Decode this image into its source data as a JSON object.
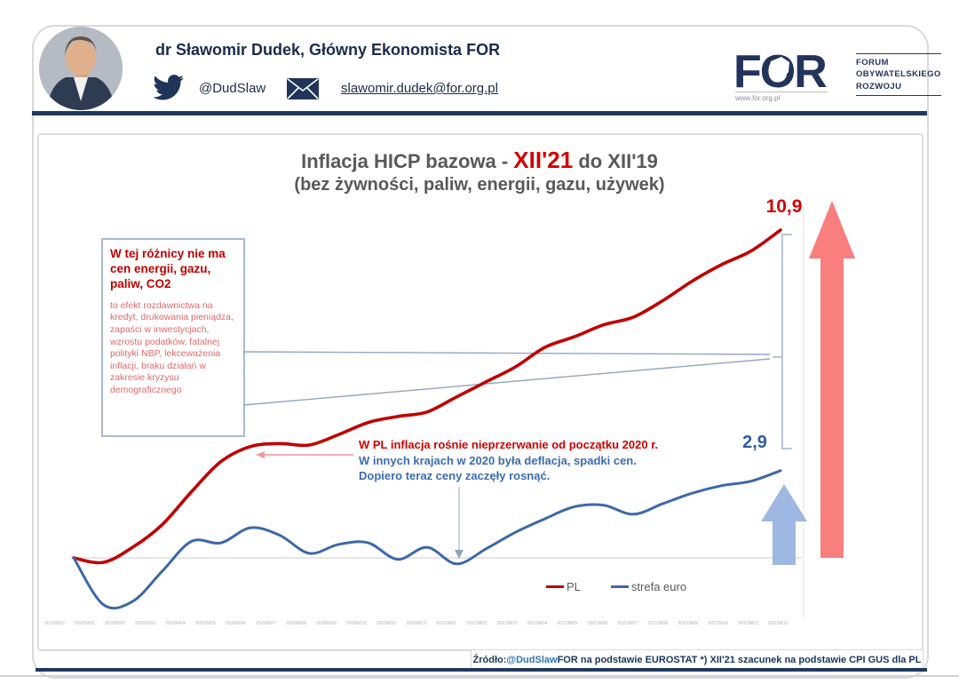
{
  "header": {
    "name": "dr Sławomir Dudek, Główny Ekonomista FOR",
    "twitter_handle": "@DudSlaw",
    "email": "slawomir.dudek@for.org.pl",
    "logo": {
      "acronym": "FOR",
      "subtitle_lines": [
        "FORUM",
        "OBYWATELSKIEGO",
        "ROZWOJU"
      ],
      "url": "www.for.org.pl"
    }
  },
  "chart": {
    "title_prefix": "Inflacja HICP bazowa - ",
    "title_highlight": "XII'21",
    "title_suffix": " do XII'19",
    "subtitle": "(bez żywności, paliw, energii, gazu, używek)",
    "box_annotation": {
      "heading": "W tej różnicy nie ma cen energii, gazu, paliw, CO2",
      "body": "to efekt rozdawnictwa na kredyt, drukowania pieniądza, zapaści w inwestycjach, wzrostu podatków, fatalnej polityki NBP, lekceważenia inflacji, braku działań w zakresie kryzysu demograficznego"
    },
    "mid_annotation": {
      "red_part": "W PL inflacja rośnie nieprzerwanie od początku 2020 r. ",
      "blue_part": "W innych krajach w 2020 była deflacja, spadki cen. Dopiero teraz ceny zaczęły rosnąć."
    },
    "pl_end_value": "10,9",
    "euro_end_value": "2,9",
    "source": {
      "prefix": "Źródło: ",
      "handle": "@DudSlaw",
      "rest": " FOR na podstawie EUROSTAT *) XII'21 szacunek na podstawie CPI GUS dla PL"
    }
  },
  "chart_data": {
    "type": "line",
    "title": "Inflacja HICP bazowa - XII'21 do XII'19 (bez żywności, paliw, energii, gazu, używek)",
    "x": [
      "2019M12",
      "2020M01",
      "2020M02",
      "2020M03",
      "2020M04",
      "2020M05",
      "2020M06",
      "2020M07",
      "2020M08",
      "2020M09",
      "2020M10",
      "2020M11",
      "2020M12",
      "2021M01",
      "2021M02",
      "2021M03",
      "2021M04",
      "2021M05",
      "2021M06",
      "2021M07",
      "2021M08",
      "2021M09",
      "2021M10",
      "2021M11",
      "2021M12"
    ],
    "series": [
      {
        "name": "PL",
        "color": "#c00000",
        "values": [
          0,
          -0.15,
          0.35,
          1.1,
          2.2,
          3.2,
          3.7,
          3.8,
          3.75,
          4.1,
          4.5,
          4.7,
          4.85,
          5.35,
          5.85,
          6.35,
          7.0,
          7.35,
          7.75,
          8.0,
          8.55,
          9.2,
          9.75,
          10.2,
          10.9
        ],
        "end_label": "10,9"
      },
      {
        "name": "strefa euro",
        "color": "#3d68a8",
        "values": [
          0,
          -1.55,
          -1.45,
          -0.45,
          0.55,
          0.5,
          1.0,
          0.75,
          0.15,
          0.45,
          0.5,
          -0.05,
          0.35,
          -0.2,
          0.3,
          0.85,
          1.3,
          1.7,
          1.75,
          1.45,
          1.8,
          2.15,
          2.4,
          2.55,
          2.9
        ],
        "end_label": "2,9"
      }
    ],
    "ylim": [
      -2,
      11.5
    ],
    "grid": "zero-line-only",
    "legend_position": "inside-bottom-right"
  },
  "colors": {
    "navy": "#20395e",
    "red_line": "#c00000",
    "blue_line": "#3d68a8",
    "red_arrow": "#f97e7e",
    "blue_arrow": "#9fb8e2",
    "bracket": "#b9c5d6",
    "title_gray": "#595959",
    "highlight_red": "#d40000",
    "annotation_light_red": "#e26868",
    "annotation_blue": "#3b6bb5",
    "source_handle_blue": "#2e75b6",
    "axis_label_gray": "#b3b3b3",
    "zero_line": "#dedede"
  }
}
